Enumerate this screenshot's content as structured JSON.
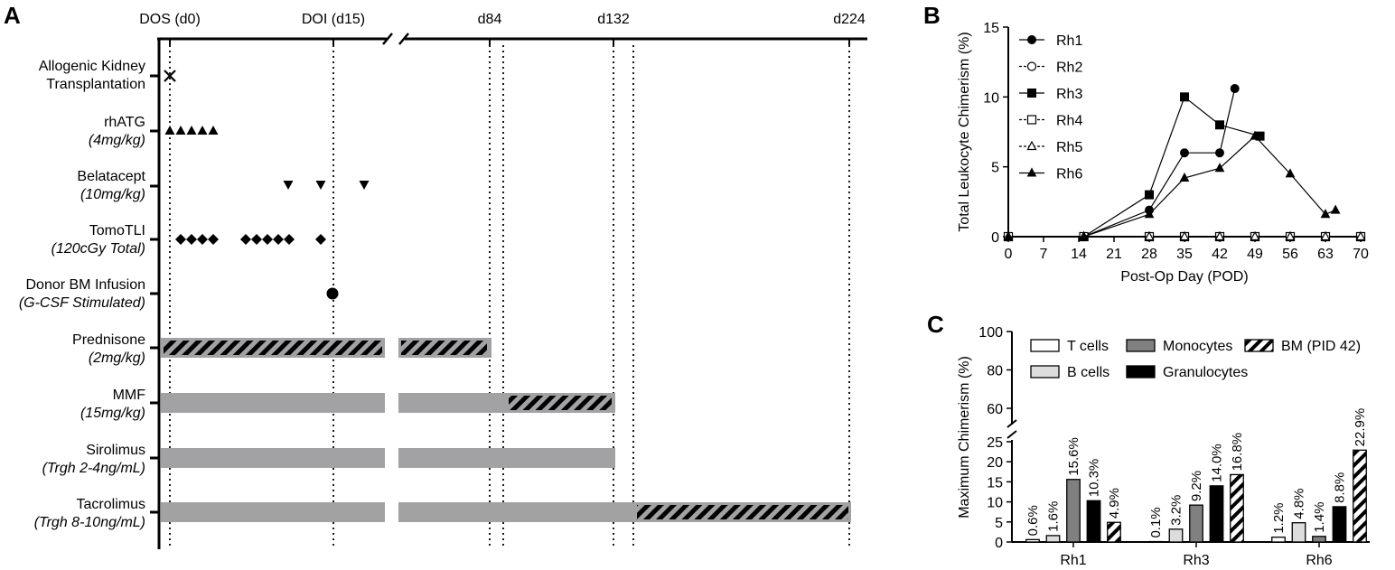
{
  "panels": {
    "a": "A",
    "b": "B",
    "c": "C"
  },
  "colors": {
    "bar_grey": "#a2a2a5",
    "ink": "#000000",
    "light_bar": "#dddddd",
    "mid_bar": "#808080"
  },
  "chart_data": [
    {
      "panel": "A",
      "type": "timeline",
      "timepoints": [
        {
          "label": "DOS (d0)",
          "day": 0
        },
        {
          "label": "DOI (d15)",
          "day": 15
        },
        {
          "label": "d84",
          "day": 84
        },
        {
          "label": "d132",
          "day": 132
        },
        {
          "label": "d224",
          "day": 224
        }
      ],
      "axis_break": "between d15 and d84",
      "rows": [
        {
          "name": "Allogenic Kidney",
          "name2": "Transplantation",
          "dose": "",
          "marker": "x"
        },
        {
          "name": "rhATG",
          "dose": "(4mg/kg)",
          "marker": "triangle-up"
        },
        {
          "name": "Belatacept",
          "dose": "(10mg/kg)",
          "marker": "triangle-down"
        },
        {
          "name": "TomoTLI",
          "dose": "(120cGy Total)",
          "marker": "diamond"
        },
        {
          "name": "Donor BM Infusion",
          "dose": "(G-CSF Stimulated)",
          "marker": "circle"
        },
        {
          "name": "Prednisone",
          "dose": "(2mg/kg)",
          "bar": "hatched until d84"
        },
        {
          "name": "MMF",
          "dose": "(15mg/kg)",
          "bar": "solid to d132, hatched taper before d132"
        },
        {
          "name": "Sirolimus",
          "dose": "(Trgh 2-4ng/mL)",
          "bar": "solid to d132"
        },
        {
          "name": "Tacrolimus",
          "dose": "(Trgh 8-10ng/mL)",
          "bar": "solid, hatched taper to d224"
        }
      ]
    },
    {
      "panel": "B",
      "type": "line",
      "xlabel": "Post-Op Day (POD)",
      "ylabel": "Total Leukocyte Chimerism (%)",
      "xlim": [
        0,
        70
      ],
      "ylim": [
        0,
        15
      ],
      "xticks": [
        "0",
        "7",
        "14",
        "21",
        "28",
        "35",
        "42",
        "49",
        "56",
        "63",
        "70"
      ],
      "yticks": [
        "0",
        "5",
        "10",
        "15"
      ],
      "series": [
        {
          "name": "Rh1",
          "marker": "circle-filled",
          "x": [
            0,
            15,
            28,
            35,
            42,
            45
          ],
          "y": [
            0,
            0,
            1.9,
            6.0,
            6.0,
            10.6
          ]
        },
        {
          "name": "Rh2",
          "marker": "circle-open",
          "x": [
            0,
            15,
            28,
            35,
            42,
            49,
            56,
            63,
            70
          ],
          "y": [
            0,
            0,
            0,
            0,
            0,
            0,
            0,
            0,
            0
          ]
        },
        {
          "name": "Rh3",
          "marker": "square-filled",
          "x": [
            0,
            15,
            28,
            35,
            42,
            50
          ],
          "y": [
            0,
            0,
            3.0,
            10.0,
            8.0,
            7.2
          ]
        },
        {
          "name": "Rh4",
          "marker": "square-open",
          "x": [
            0,
            15,
            28,
            35,
            42,
            49,
            56,
            63,
            70
          ],
          "y": [
            0,
            0,
            0,
            0,
            0,
            0,
            0,
            0,
            0
          ]
        },
        {
          "name": "Rh5",
          "marker": "triangle-open",
          "x": [
            0,
            15,
            28,
            35,
            42,
            49,
            56,
            63,
            70
          ],
          "y": [
            0,
            0,
            0,
            0,
            0,
            0,
            0,
            0,
            0
          ]
        },
        {
          "name": "Rh6",
          "marker": "triangle-filled",
          "x": [
            0,
            15,
            28,
            35,
            42,
            49,
            56,
            63,
            65
          ],
          "y": [
            0,
            0,
            1.6,
            4.2,
            4.9,
            7.2,
            4.5,
            1.6,
            1.9
          ]
        }
      ]
    },
    {
      "panel": "C",
      "type": "bar",
      "ylabel": "Maximum Chimerism (%)",
      "yticks_upper": [
        "60",
        "80",
        "100"
      ],
      "yticks_lower": [
        "0",
        "5",
        "10",
        "15",
        "20",
        "25"
      ],
      "ylim_upper": [
        50,
        100
      ],
      "ylim_lower": [
        0,
        25
      ],
      "categories": [
        "Rh1",
        "Rh3",
        "Rh6"
      ],
      "series": [
        {
          "name": "T cells",
          "style": "white",
          "values": [
            0.6,
            0.1,
            1.2
          ],
          "labels": [
            "0.6%",
            "0.1%",
            "1.2%"
          ]
        },
        {
          "name": "B cells",
          "style": "light-grey",
          "values": [
            1.6,
            3.2,
            4.8
          ],
          "labels": [
            "1.6%",
            "3.2%",
            "4.8%"
          ]
        },
        {
          "name": "Monocytes",
          "style": "mid-grey",
          "values": [
            15.6,
            9.2,
            1.4
          ],
          "labels": [
            "15.6%",
            "9.2%",
            "1.4%"
          ]
        },
        {
          "name": "Granulocytes",
          "style": "black",
          "values": [
            10.3,
            14.0,
            8.8
          ],
          "labels": [
            "10.3%",
            "14.0%",
            "8.8%"
          ]
        },
        {
          "name": "BM (PID 42)",
          "style": "hatched",
          "values": [
            4.9,
            16.8,
            22.9
          ],
          "labels": [
            "4.9%",
            "16.8%",
            "22.9%"
          ]
        }
      ]
    }
  ]
}
